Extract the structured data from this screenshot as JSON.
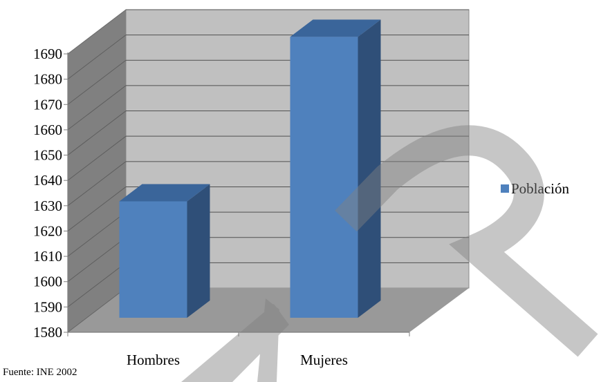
{
  "chart_data": {
    "type": "bar",
    "title": "",
    "xlabel": "",
    "ylabel": "",
    "categories": [
      "Hombres",
      "Mujeres"
    ],
    "series": [
      {
        "name": "Población",
        "values": [
          1626,
          1691
        ]
      }
    ],
    "ylim": [
      1580,
      1690
    ],
    "yticks": [
      1580,
      1590,
      1600,
      1610,
      1620,
      1630,
      1640,
      1650,
      1660,
      1670,
      1680,
      1690
    ],
    "grid": true,
    "legend": "right",
    "colors": {
      "bar_front": "#4F81BD",
      "bar_top": "#3A659A",
      "bar_side": "#2F4F78",
      "back_wall": "#C0C0C0",
      "side_wall": "#808080",
      "floor": "#999999",
      "gridline": "#505050",
      "watermark": "#808080"
    }
  },
  "source_note": "Fuente: INE 2002"
}
